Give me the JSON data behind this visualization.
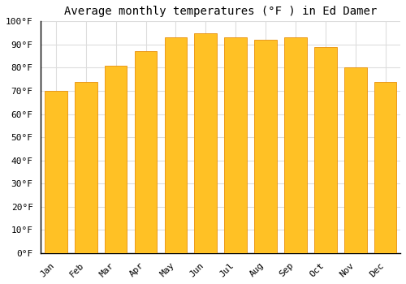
{
  "title": "Average monthly temperatures (°F ) in Ed Damer",
  "months": [
    "Jan",
    "Feb",
    "Mar",
    "Apr",
    "May",
    "Jun",
    "Jul",
    "Aug",
    "Sep",
    "Oct",
    "Nov",
    "Dec"
  ],
  "values": [
    70,
    74,
    81,
    87,
    93,
    95,
    93,
    92,
    93,
    89,
    80,
    74
  ],
  "bar_color_face": "#FFC125",
  "bar_color_edge": "#E8900A",
  "ylim": [
    0,
    100
  ],
  "yticks": [
    0,
    10,
    20,
    30,
    40,
    50,
    60,
    70,
    80,
    90,
    100
  ],
  "ytick_labels": [
    "0°F",
    "10°F",
    "20°F",
    "30°F",
    "40°F",
    "50°F",
    "60°F",
    "70°F",
    "80°F",
    "90°F",
    "100°F"
  ],
  "background_color": "#FFFFFF",
  "grid_color": "#DDDDDD",
  "title_fontsize": 10,
  "tick_fontsize": 8,
  "font_family": "monospace",
  "bar_width": 0.75
}
